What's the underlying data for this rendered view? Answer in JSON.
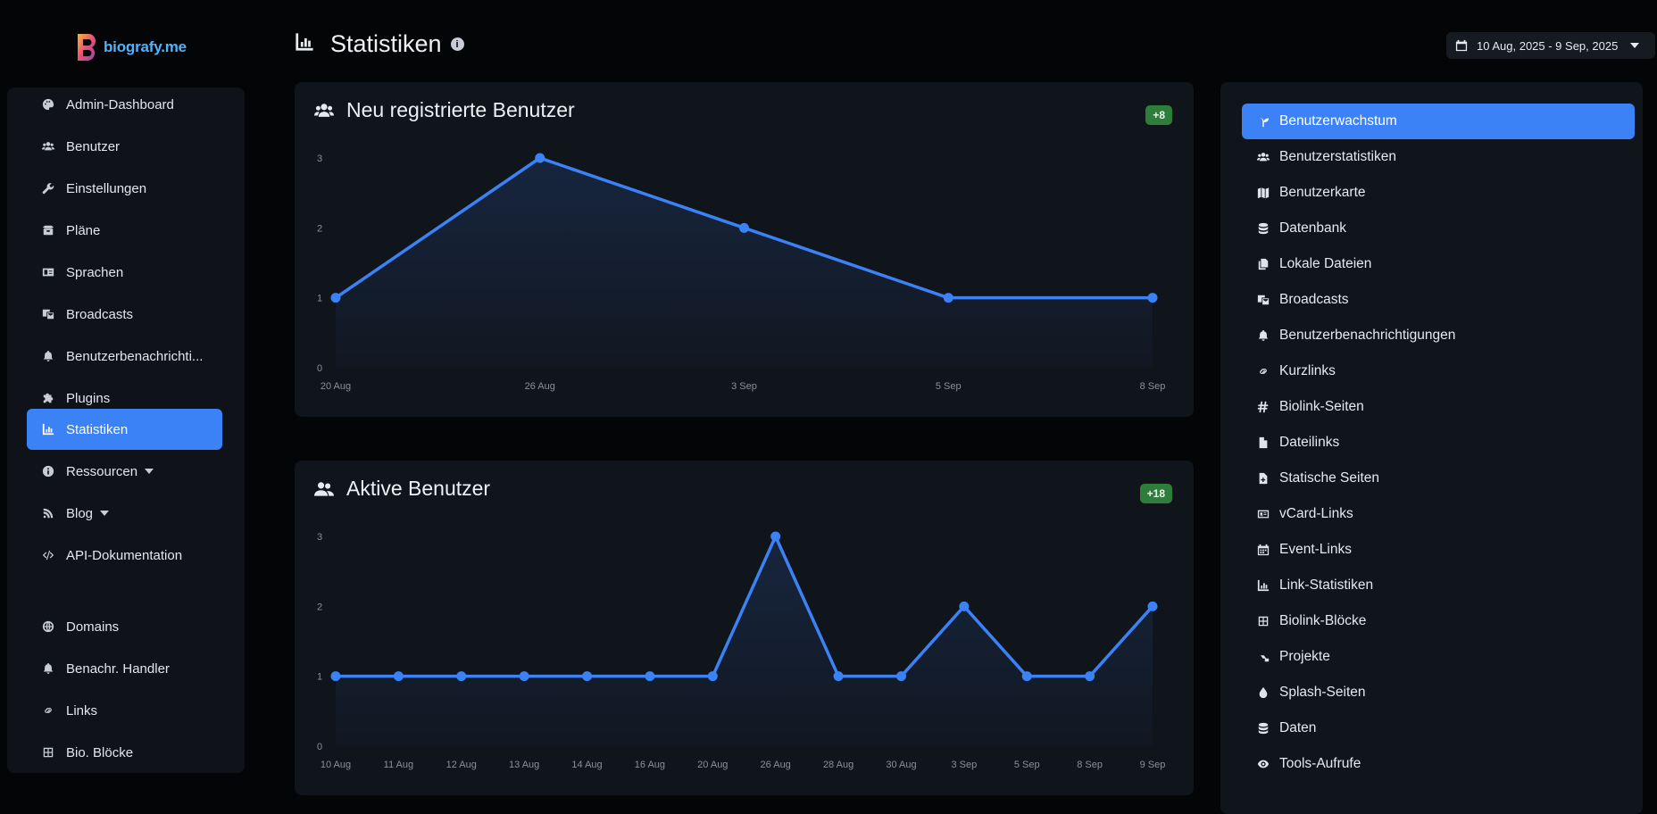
{
  "brand": {
    "name": "biografy.me"
  },
  "page": {
    "title": "Statistiken"
  },
  "date_range": "10 Aug, 2025 - 9 Sep, 2025",
  "sidebar": {
    "items": [
      {
        "label": "Admin-Dashboard",
        "icon": "palette-icon"
      },
      {
        "label": "Benutzer",
        "icon": "users-icon"
      },
      {
        "label": "Einstellungen",
        "icon": "wrench-icon"
      },
      {
        "label": "Pläne",
        "icon": "box-icon"
      },
      {
        "label": "Sprachen",
        "icon": "language-icon"
      },
      {
        "label": "Broadcasts",
        "icon": "mail-bulk-icon"
      },
      {
        "label": "Benutzerbenachrichti...",
        "icon": "bell-icon"
      },
      {
        "label": "Plugins",
        "icon": "puzzle-icon"
      },
      {
        "label": "Statistiken",
        "icon": "chart-icon"
      },
      {
        "label": "Ressourcen",
        "icon": "info-icon"
      },
      {
        "label": "Blog",
        "icon": "blog-icon"
      },
      {
        "label": "API-Dokumentation",
        "icon": "code-icon"
      },
      {
        "label": "Domains",
        "icon": "globe-icon"
      },
      {
        "label": "Benachr. Handler",
        "icon": "bell-icon"
      },
      {
        "label": "Links",
        "icon": "link-icon"
      },
      {
        "label": "Bio. Blöcke",
        "icon": "grid-icon"
      }
    ]
  },
  "cards": {
    "new_users": {
      "title": "Neu registrierte Benutzer",
      "badge": "+8",
      "watermark": ""
    },
    "active_users": {
      "title": "Aktive Benutzer",
      "badge": "+18",
      "watermark": ""
    }
  },
  "chart_data": [
    {
      "type": "area",
      "title": "Neu registrierte Benutzer",
      "categories": [
        "20 Aug",
        "26 Aug",
        "3 Sep",
        "5 Sep",
        "8 Sep"
      ],
      "values": [
        1,
        3,
        2,
        1,
        1
      ],
      "ylim": [
        0,
        3
      ],
      "yticks": [
        "0",
        "1",
        "2",
        "3"
      ],
      "color": "#3b82f6"
    },
    {
      "type": "area",
      "title": "Aktive Benutzer",
      "categories": [
        "10 Aug",
        "11 Aug",
        "12 Aug",
        "13 Aug",
        "14 Aug",
        "16 Aug",
        "20 Aug",
        "26 Aug",
        "28 Aug",
        "30 Aug",
        "3 Sep",
        "5 Sep",
        "8 Sep",
        "9 Sep"
      ],
      "values": [
        1,
        1,
        1,
        1,
        1,
        1,
        1,
        3,
        1,
        1,
        2,
        1,
        1,
        2
      ],
      "ylim": [
        0,
        3
      ],
      "yticks": [
        "0",
        "1",
        "2",
        "3"
      ],
      "color": "#3b82f6"
    }
  ],
  "right_panel": {
    "items": [
      {
        "label": "Benutzerwachstum",
        "icon": "seedling-icon"
      },
      {
        "label": "Benutzerstatistiken",
        "icon": "users-icon"
      },
      {
        "label": "Benutzerkarte",
        "icon": "map-icon"
      },
      {
        "label": "Datenbank",
        "icon": "database-icon"
      },
      {
        "label": "Lokale Dateien",
        "icon": "copy-icon"
      },
      {
        "label": "Broadcasts",
        "icon": "mail-bulk-icon"
      },
      {
        "label": "Benutzerbenachrichtigungen",
        "icon": "bell-icon"
      },
      {
        "label": "Kurzlinks",
        "icon": "link-icon"
      },
      {
        "label": "Biolink-Seiten",
        "icon": "hashtag-icon"
      },
      {
        "label": "Dateilinks",
        "icon": "file-icon"
      },
      {
        "label": "Statische Seiten",
        "icon": "file-plus-icon"
      },
      {
        "label": "vCard-Links",
        "icon": "id-card-icon"
      },
      {
        "label": "Event-Links",
        "icon": "calendar-icon"
      },
      {
        "label": "Link-Statistiken",
        "icon": "chart-icon"
      },
      {
        "label": "Biolink-Blöcke",
        "icon": "grid-icon"
      },
      {
        "label": "Projekte",
        "icon": "project-icon"
      },
      {
        "label": "Splash-Seiten",
        "icon": "droplet-icon"
      },
      {
        "label": "Daten",
        "icon": "database-icon"
      },
      {
        "label": "Tools-Aufrufe",
        "icon": "eye-icon"
      }
    ]
  }
}
